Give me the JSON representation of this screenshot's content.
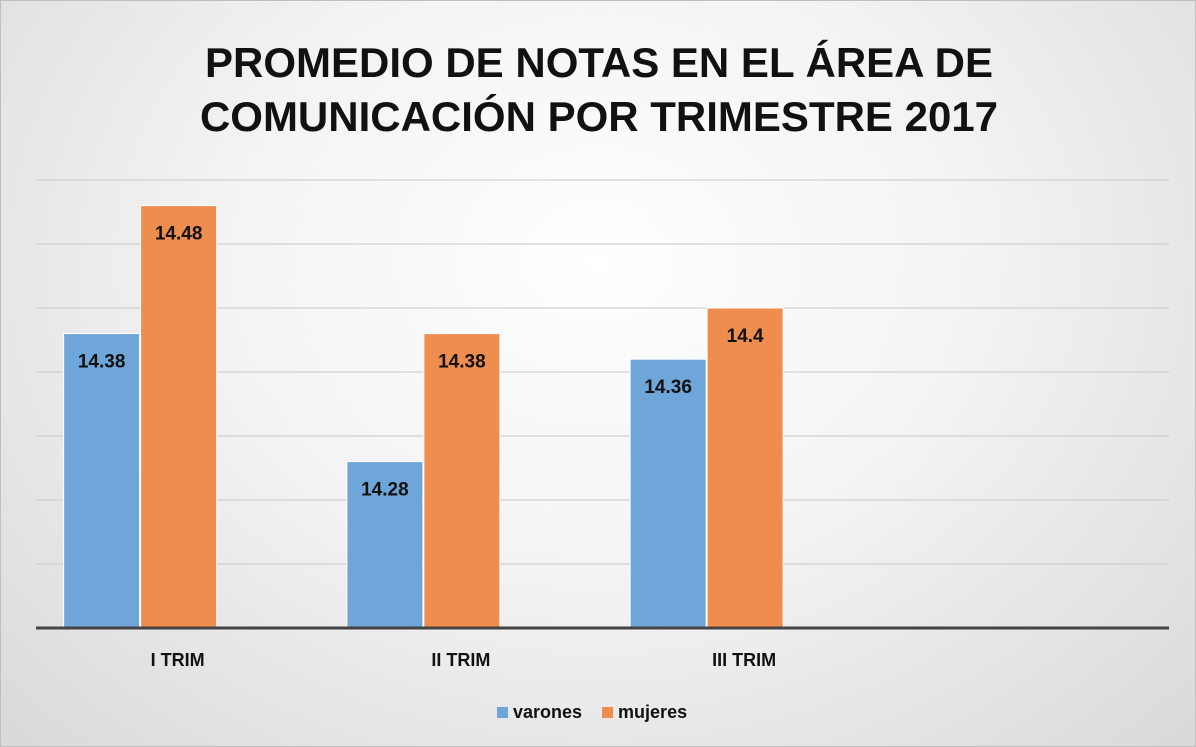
{
  "chart_data": {
    "type": "bar",
    "title": "PROMEDIO DE NOTAS EN EL ÁREA DE COMUNICACIÓN POR TRIMESTRE 2017",
    "categories": [
      "I TRIM",
      "II TRIM",
      "III TRIM",
      null
    ],
    "series": [
      {
        "name": "varones",
        "color": "#6fa6da",
        "values": [
          14.38,
          14.28,
          14.36,
          null
        ]
      },
      {
        "name": "mujeres",
        "color": "#ee8d4d",
        "values": [
          14.48,
          14.38,
          14.4,
          null
        ]
      }
    ],
    "ylim": [
      14.15,
      14.5
    ],
    "yticks": [
      14.15,
      14.2,
      14.25,
      14.3,
      14.35,
      14.4,
      14.45,
      14.5
    ],
    "grid": true,
    "legend": "bottom"
  }
}
